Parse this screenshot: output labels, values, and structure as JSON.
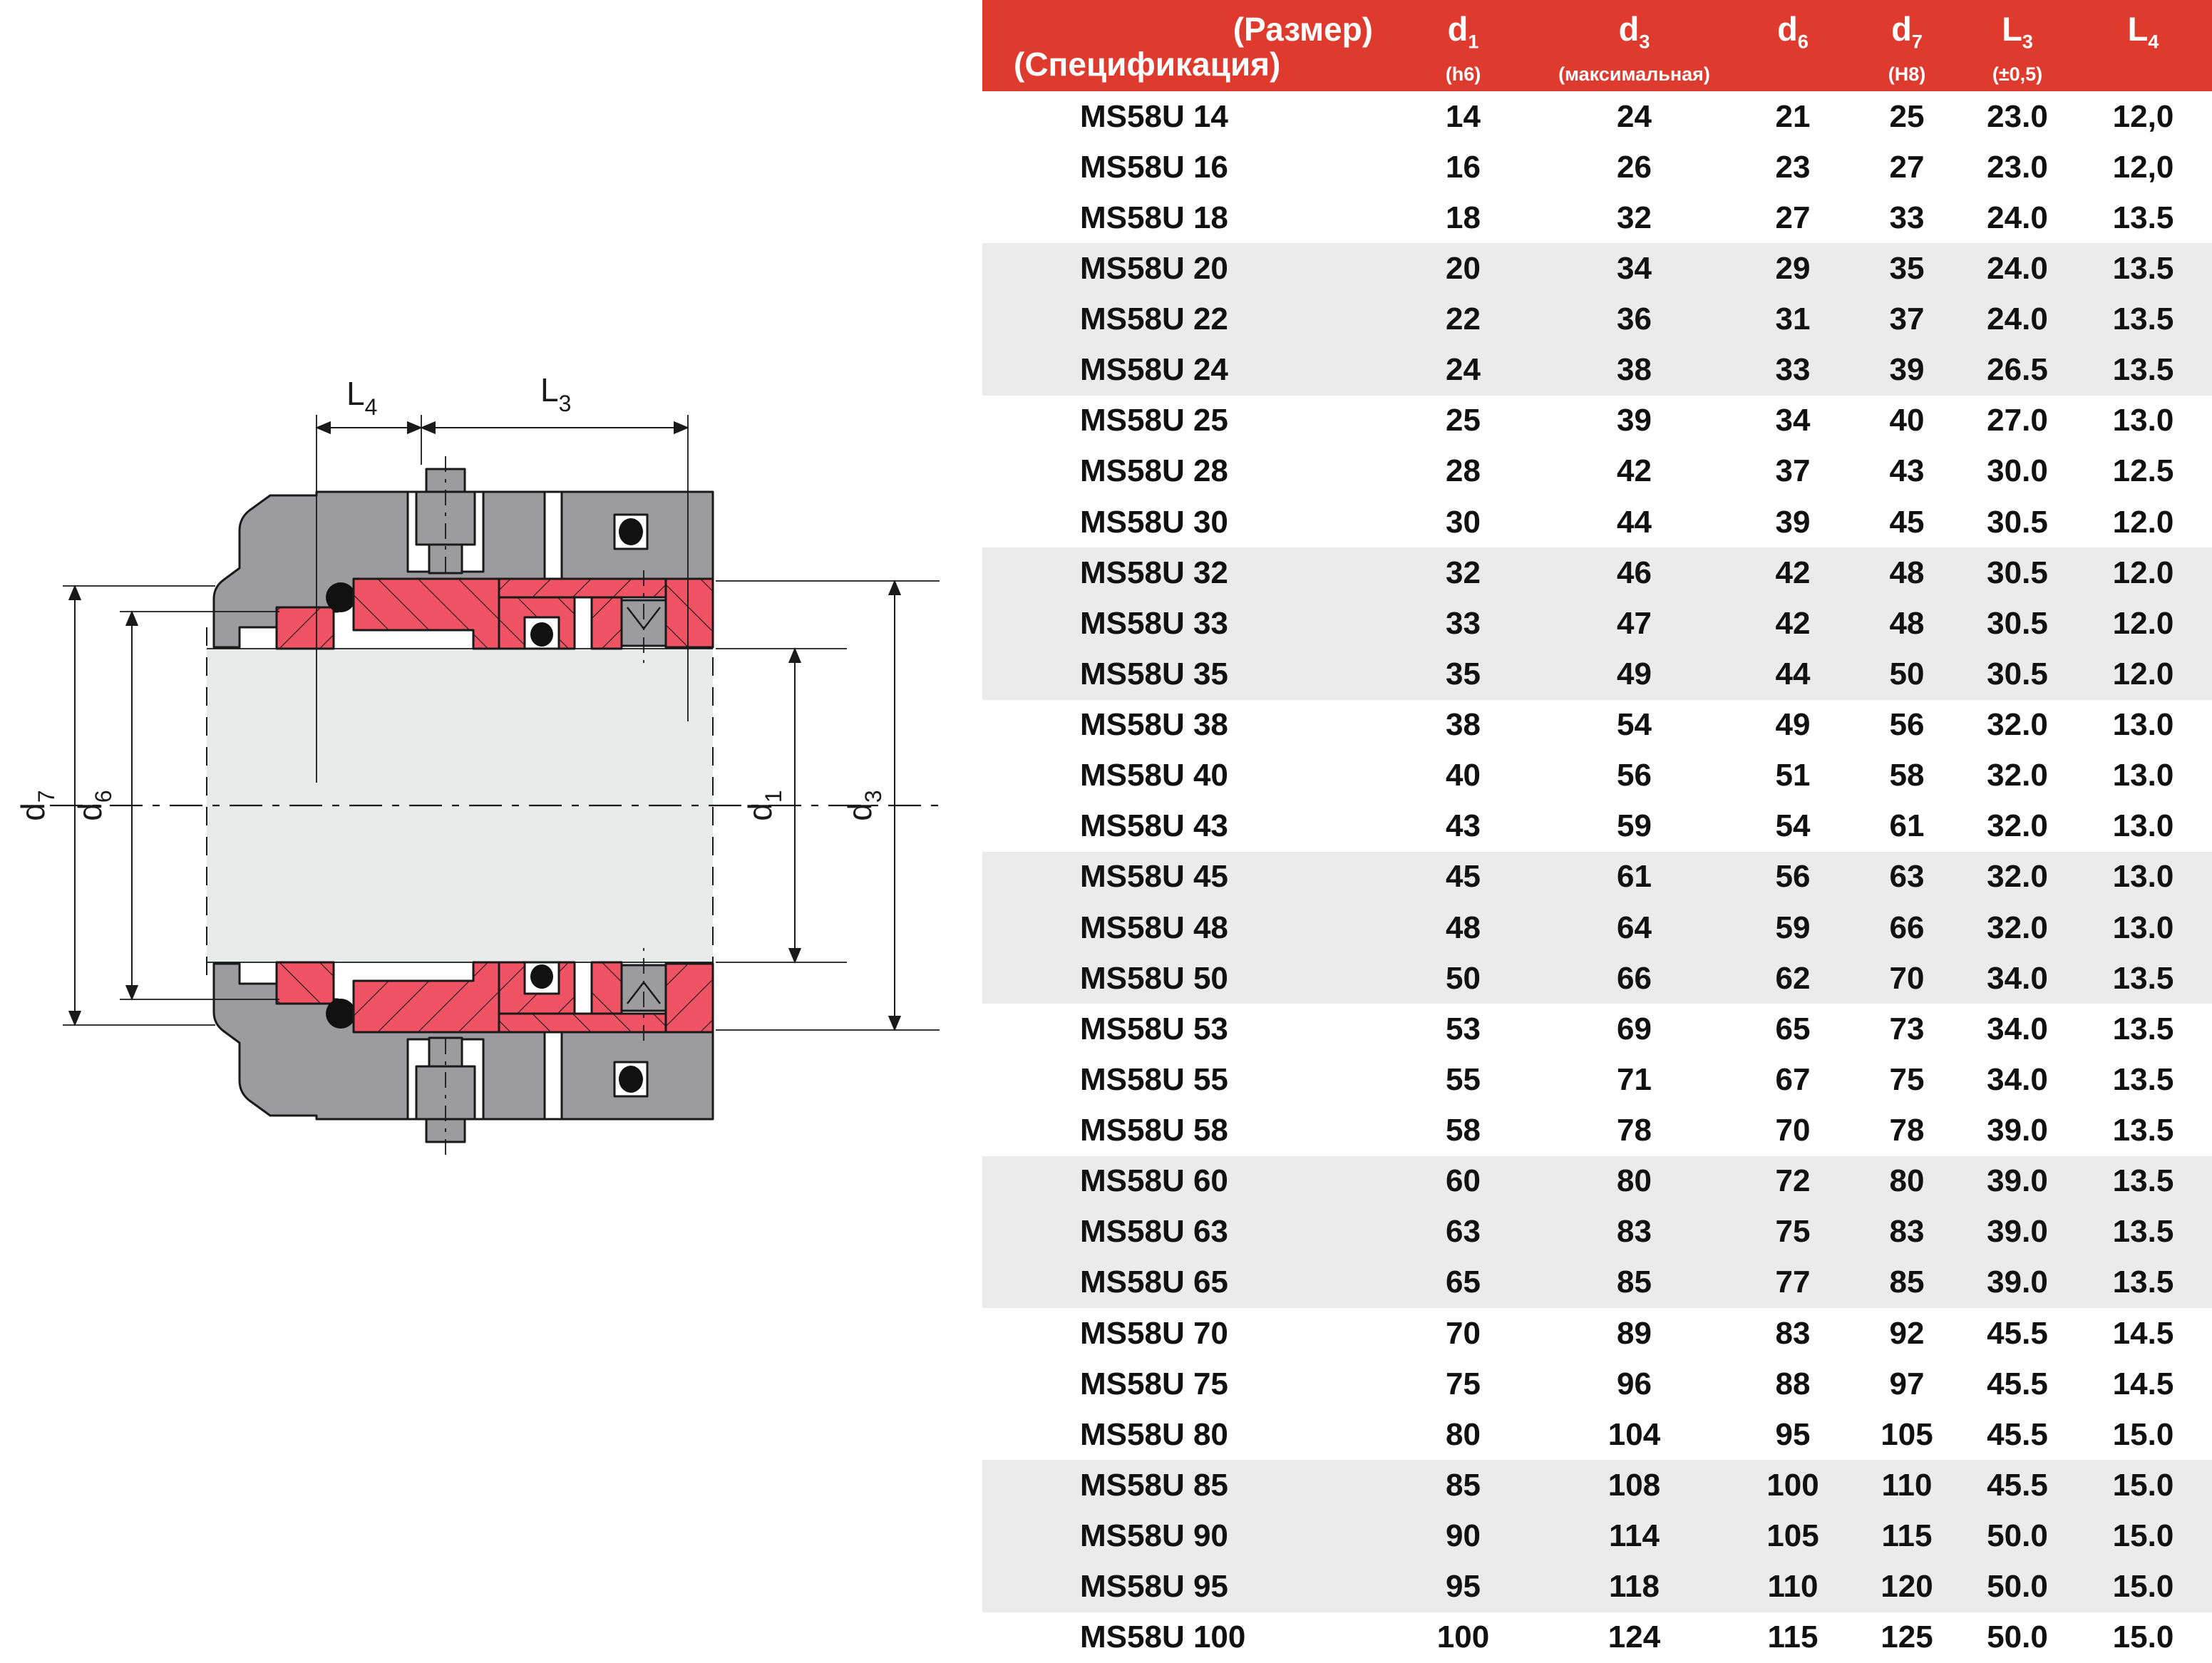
{
  "table": {
    "columns": [
      {
        "key": "name",
        "lines": [
          "(Размер)",
          "(Спецификация)"
        ]
      },
      {
        "key": "d1",
        "main": "d",
        "sub": "1",
        "note": "(h6)"
      },
      {
        "key": "d3",
        "main": "d",
        "sub": "3",
        "note": "(максимальная)"
      },
      {
        "key": "d6",
        "main": "d",
        "sub": "6",
        "note": ""
      },
      {
        "key": "d7",
        "main": "d",
        "sub": "7",
        "note": "(H8)"
      },
      {
        "key": "l3",
        "main": "L",
        "sub": "3",
        "note": "(±0,5)"
      },
      {
        "key": "l4",
        "main": "L",
        "sub": "4",
        "note": ""
      }
    ],
    "rows": [
      {
        "name": "MS58U 14",
        "d1": "14",
        "d3": "24",
        "d6": "21",
        "d7": "25",
        "l3": "23.0",
        "l4": "12,0",
        "shaded": false
      },
      {
        "name": "MS58U 16",
        "d1": "16",
        "d3": "26",
        "d6": "23",
        "d7": "27",
        "l3": "23.0",
        "l4": "12,0",
        "shaded": false
      },
      {
        "name": "MS58U 18",
        "d1": "18",
        "d3": "32",
        "d6": "27",
        "d7": "33",
        "l3": "24.0",
        "l4": "13.5",
        "shaded": false
      },
      {
        "name": "MS58U 20",
        "d1": "20",
        "d3": "34",
        "d6": "29",
        "d7": "35",
        "l3": "24.0",
        "l4": "13.5",
        "shaded": true
      },
      {
        "name": "MS58U 22",
        "d1": "22",
        "d3": "36",
        "d6": "31",
        "d7": "37",
        "l3": "24.0",
        "l4": "13.5",
        "shaded": true
      },
      {
        "name": "MS58U 24",
        "d1": "24",
        "d3": "38",
        "d6": "33",
        "d7": "39",
        "l3": "26.5",
        "l4": "13.5",
        "shaded": true
      },
      {
        "name": "MS58U 25",
        "d1": "25",
        "d3": "39",
        "d6": "34",
        "d7": "40",
        "l3": "27.0",
        "l4": "13.0",
        "shaded": false
      },
      {
        "name": "MS58U 28",
        "d1": "28",
        "d3": "42",
        "d6": "37",
        "d7": "43",
        "l3": "30.0",
        "l4": "12.5",
        "shaded": false
      },
      {
        "name": "MS58U 30",
        "d1": "30",
        "d3": "44",
        "d6": "39",
        "d7": "45",
        "l3": "30.5",
        "l4": "12.0",
        "shaded": false
      },
      {
        "name": "MS58U 32",
        "d1": "32",
        "d3": "46",
        "d6": "42",
        "d7": "48",
        "l3": "30.5",
        "l4": "12.0",
        "shaded": true
      },
      {
        "name": "MS58U 33",
        "d1": "33",
        "d3": "47",
        "d6": "42",
        "d7": "48",
        "l3": "30.5",
        "l4": "12.0",
        "shaded": true
      },
      {
        "name": "MS58U 35",
        "d1": "35",
        "d3": "49",
        "d6": "44",
        "d7": "50",
        "l3": "30.5",
        "l4": "12.0",
        "shaded": true
      },
      {
        "name": "MS58U 38",
        "d1": "38",
        "d3": "54",
        "d6": "49",
        "d7": "56",
        "l3": "32.0",
        "l4": "13.0",
        "shaded": false
      },
      {
        "name": "MS58U 40",
        "d1": "40",
        "d3": "56",
        "d6": "51",
        "d7": "58",
        "l3": "32.0",
        "l4": "13.0",
        "shaded": false
      },
      {
        "name": "MS58U 43",
        "d1": "43",
        "d3": "59",
        "d6": "54",
        "d7": "61",
        "l3": "32.0",
        "l4": "13.0",
        "shaded": false
      },
      {
        "name": "MS58U 45",
        "d1": "45",
        "d3": "61",
        "d6": "56",
        "d7": "63",
        "l3": "32.0",
        "l4": "13.0",
        "shaded": true
      },
      {
        "name": "MS58U 48",
        "d1": "48",
        "d3": "64",
        "d6": "59",
        "d7": "66",
        "l3": "32.0",
        "l4": "13.0",
        "shaded": true
      },
      {
        "name": "MS58U 50",
        "d1": "50",
        "d3": "66",
        "d6": "62",
        "d7": "70",
        "l3": "34.0",
        "l4": "13.5",
        "shaded": true
      },
      {
        "name": "MS58U 53",
        "d1": "53",
        "d3": "69",
        "d6": "65",
        "d7": "73",
        "l3": "34.0",
        "l4": "13.5",
        "shaded": false
      },
      {
        "name": "MS58U 55",
        "d1": "55",
        "d3": "71",
        "d6": "67",
        "d7": "75",
        "l3": "34.0",
        "l4": "13.5",
        "shaded": false
      },
      {
        "name": "MS58U 58",
        "d1": "58",
        "d3": "78",
        "d6": "70",
        "d7": "78",
        "l3": "39.0",
        "l4": "13.5",
        "shaded": false
      },
      {
        "name": "MS58U 60",
        "d1": "60",
        "d3": "80",
        "d6": "72",
        "d7": "80",
        "l3": "39.0",
        "l4": "13.5",
        "shaded": true
      },
      {
        "name": "MS58U 63",
        "d1": "63",
        "d3": "83",
        "d6": "75",
        "d7": "83",
        "l3": "39.0",
        "l4": "13.5",
        "shaded": true
      },
      {
        "name": "MS58U 65",
        "d1": "65",
        "d3": "85",
        "d6": "77",
        "d7": "85",
        "l3": "39.0",
        "l4": "13.5",
        "shaded": true
      },
      {
        "name": "MS58U 70",
        "d1": "70",
        "d3": "89",
        "d6": "83",
        "d7": "92",
        "l3": "45.5",
        "l4": "14.5",
        "shaded": false
      },
      {
        "name": "MS58U 75",
        "d1": "75",
        "d3": "96",
        "d6": "88",
        "d7": "97",
        "l3": "45.5",
        "l4": "14.5",
        "shaded": false
      },
      {
        "name": "MS58U 80",
        "d1": "80",
        "d3": "104",
        "d6": "95",
        "d7": "105",
        "l3": "45.5",
        "l4": "15.0",
        "shaded": false
      },
      {
        "name": "MS58U 85",
        "d1": "85",
        "d3": "108",
        "d6": "100",
        "d7": "110",
        "l3": "45.5",
        "l4": "15.0",
        "shaded": true
      },
      {
        "name": "MS58U 90",
        "d1": "90",
        "d3": "114",
        "d6": "105",
        "d7": "115",
        "l3": "50.0",
        "l4": "15.0",
        "shaded": true
      },
      {
        "name": "MS58U 95",
        "d1": "95",
        "d3": "118",
        "d6": "110",
        "d7": "120",
        "l3": "50.0",
        "l4": "15.0",
        "shaded": true
      },
      {
        "name": "MS58U 100",
        "d1": "100",
        "d3": "124",
        "d6": "115",
        "d7": "125",
        "l3": "50.0",
        "l4": "15.0",
        "shaded": false
      }
    ]
  },
  "diagram": {
    "labels": {
      "l4": {
        "main": "L",
        "sub": "4"
      },
      "l3": {
        "main": "L",
        "sub": "3"
      },
      "d7": {
        "main": "d",
        "sub": "7"
      },
      "d6": {
        "main": "d",
        "sub": "6"
      },
      "d1": {
        "main": "d",
        "sub": "1"
      },
      "d3": {
        "main": "d",
        "sub": "3"
      }
    }
  },
  "colors": {
    "header_red": "#DF3A2E",
    "seal_red": "#EF5364",
    "housing_gray": "#9C9C9E",
    "shaft_gray": "#E9EBEB",
    "row_alt_gray": "#EBEBEB",
    "line_black": "#1a1a1a"
  }
}
